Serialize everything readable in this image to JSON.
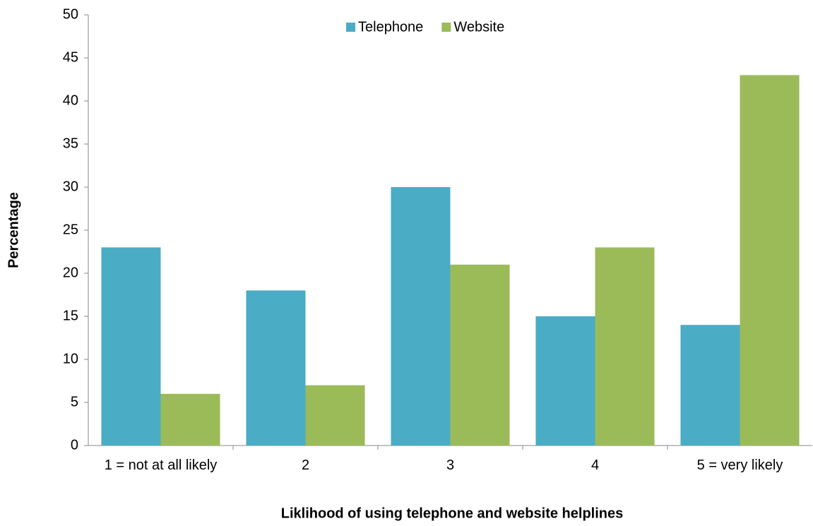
{
  "chart_data": {
    "type": "bar",
    "categories": [
      "1 = not at all likely",
      "2",
      "3",
      "4",
      "5 = very likely"
    ],
    "series": [
      {
        "name": "Telephone",
        "color": "#4bacc6",
        "values": [
          23,
          18,
          30,
          15,
          14
        ]
      },
      {
        "name": "Website",
        "color": "#9bbb59",
        "values": [
          6,
          7,
          21,
          23,
          43
        ]
      }
    ],
    "x_label": "Liklihood of using telephone and website helplines",
    "y_label": "Percentage",
    "ylim": [
      0,
      50
    ],
    "yticks": [
      0,
      5,
      10,
      15,
      20,
      25,
      30,
      35,
      40,
      45,
      50
    ],
    "grid": false,
    "legend": "top"
  }
}
